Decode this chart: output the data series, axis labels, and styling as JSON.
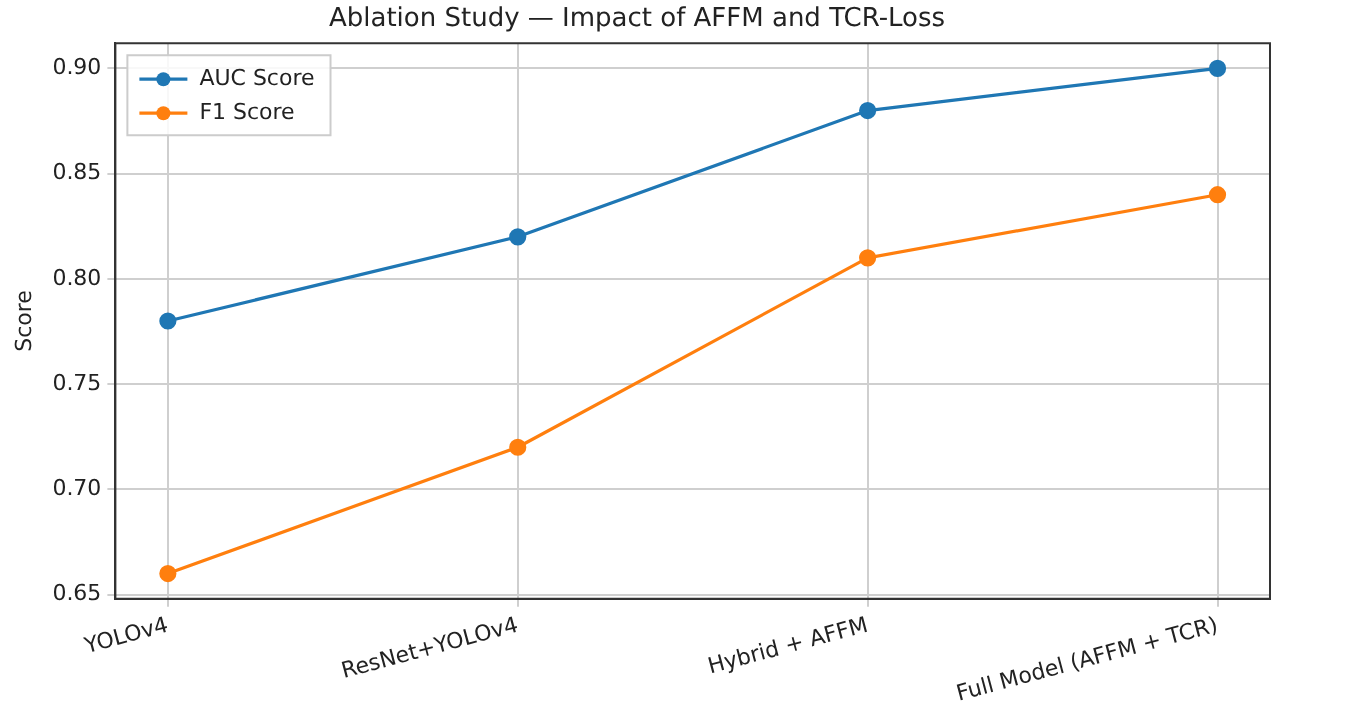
{
  "chart_data": {
    "type": "line",
    "title": "Ablation Study — Impact of AFFM and TCR-Loss",
    "ylabel": "Score",
    "categories": [
      "YOLOv4",
      "ResNet+YOLOv4",
      "Hybrid + AFFM",
      "Full Model (AFFM + TCR)"
    ],
    "series": [
      {
        "name": "AUC Score",
        "color": "#1f77b4",
        "values": [
          0.78,
          0.82,
          0.88,
          0.9
        ]
      },
      {
        "name": "F1 Score",
        "color": "#ff7f0e",
        "values": [
          0.66,
          0.72,
          0.81,
          0.84
        ]
      }
    ],
    "ylim": [
      0.648,
      0.912
    ],
    "yticks": [
      {
        "value": 0.65,
        "label": "0.65"
      },
      {
        "value": 0.7,
        "label": "0.70"
      },
      {
        "value": 0.75,
        "label": "0.75"
      },
      {
        "value": 0.8,
        "label": "0.80"
      },
      {
        "value": 0.85,
        "label": "0.85"
      },
      {
        "value": 0.9,
        "label": "0.90"
      }
    ],
    "grid": true,
    "legend": "top left",
    "marker": "circle",
    "line_style": "solid"
  }
}
